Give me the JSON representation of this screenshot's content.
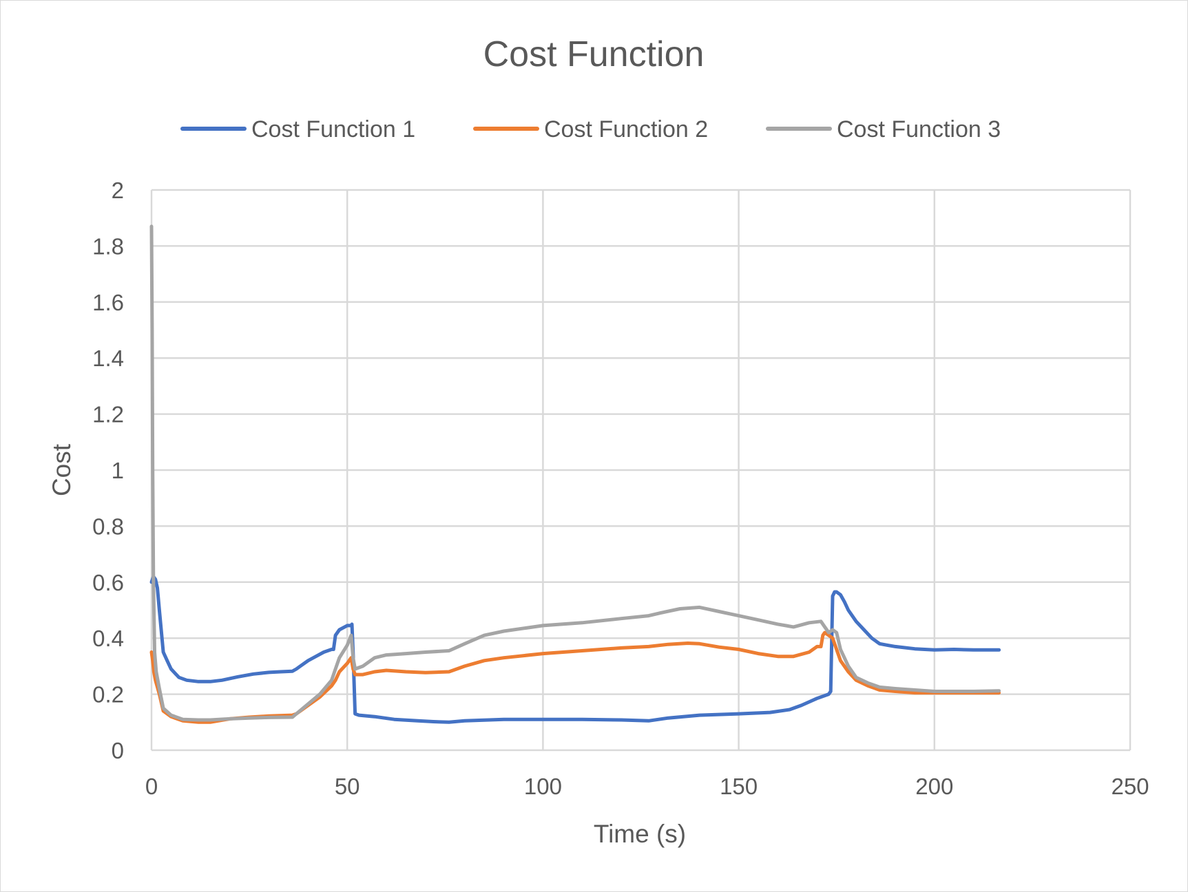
{
  "chart_data": {
    "type": "line",
    "title": "Cost Function",
    "xlabel": "Time (s)",
    "ylabel": "Cost",
    "xlim": [
      0,
      250
    ],
    "ylim": [
      0,
      2
    ],
    "xticks": [
      "0",
      "50",
      "100",
      "150",
      "200",
      "250"
    ],
    "yticks": [
      "0",
      "0.2",
      "0.4",
      "0.6",
      "0.8",
      "1",
      "1.2",
      "1.4",
      "1.6",
      "1.8",
      "2"
    ],
    "grid": true,
    "legend": "top",
    "series": [
      {
        "name": "Cost Function 1",
        "color": "#4472C4",
        "x": [
          0,
          0.5,
          1,
          1.5,
          2,
          3,
          4,
          5,
          7,
          9,
          12,
          15,
          18,
          22,
          26,
          30,
          33,
          36,
          37,
          38,
          40,
          42,
          44,
          46,
          46.5,
          47,
          48,
          50,
          51,
          51.2,
          51.5,
          52,
          53,
          57,
          62,
          68,
          72,
          76,
          80,
          90,
          100,
          110,
          120,
          127,
          132,
          140,
          150,
          158,
          163,
          166,
          170,
          173,
          173.5,
          174,
          174.5,
          175,
          176,
          177,
          178,
          180,
          182,
          184,
          186,
          188,
          190,
          195,
          200,
          205,
          210,
          216.5
        ],
        "y": [
          0.6,
          0.62,
          0.61,
          0.58,
          0.5,
          0.35,
          0.32,
          0.29,
          0.26,
          0.25,
          0.245,
          0.245,
          0.25,
          0.262,
          0.272,
          0.278,
          0.28,
          0.282,
          0.29,
          0.3,
          0.32,
          0.335,
          0.35,
          0.36,
          0.36,
          0.41,
          0.43,
          0.445,
          0.445,
          0.45,
          0.35,
          0.13,
          0.125,
          0.12,
          0.11,
          0.105,
          0.102,
          0.1,
          0.105,
          0.11,
          0.11,
          0.11,
          0.108,
          0.105,
          0.115,
          0.125,
          0.13,
          0.135,
          0.145,
          0.16,
          0.185,
          0.2,
          0.21,
          0.55,
          0.565,
          0.565,
          0.555,
          0.53,
          0.5,
          0.46,
          0.43,
          0.4,
          0.38,
          0.375,
          0.37,
          0.362,
          0.358,
          0.36,
          0.358,
          0.358
        ]
      },
      {
        "name": "Cost Function 2",
        "color": "#ED7D31",
        "x": [
          0,
          0.3,
          0.6,
          1,
          2,
          3,
          5,
          8,
          12,
          15,
          20,
          25,
          30,
          36,
          37,
          40,
          43,
          46,
          47,
          48,
          50,
          51,
          51.5,
          52,
          54,
          57,
          60,
          65,
          70,
          76,
          80,
          85,
          90,
          100,
          110,
          120,
          127,
          132,
          137,
          140,
          145,
          150,
          155,
          160,
          164,
          168,
          170,
          171,
          171.5,
          172,
          173,
          174,
          175,
          176,
          178,
          180,
          183,
          186,
          190,
          195,
          200,
          210,
          216.5
        ],
        "y": [
          0.35,
          0.32,
          0.28,
          0.25,
          0.2,
          0.14,
          0.12,
          0.105,
          0.1,
          0.1,
          0.112,
          0.118,
          0.122,
          0.125,
          0.13,
          0.16,
          0.19,
          0.23,
          0.25,
          0.28,
          0.31,
          0.33,
          0.29,
          0.27,
          0.27,
          0.28,
          0.285,
          0.28,
          0.277,
          0.28,
          0.3,
          0.32,
          0.33,
          0.345,
          0.355,
          0.365,
          0.37,
          0.378,
          0.382,
          0.38,
          0.368,
          0.36,
          0.345,
          0.335,
          0.335,
          0.35,
          0.37,
          0.37,
          0.41,
          0.42,
          0.41,
          0.4,
          0.36,
          0.32,
          0.28,
          0.25,
          0.23,
          0.215,
          0.21,
          0.205,
          0.205,
          0.205,
          0.205
        ]
      },
      {
        "name": "Cost Function 3",
        "color": "#A5A5A5",
        "x": [
          0,
          0.15,
          0.3,
          0.5,
          0.8,
          1.2,
          2,
          3,
          5,
          8,
          12,
          15,
          20,
          25,
          30,
          36,
          37,
          40,
          43,
          46,
          47,
          48,
          50,
          51,
          51.5,
          52,
          54,
          57,
          60,
          65,
          70,
          76,
          80,
          85,
          90,
          100,
          110,
          120,
          127,
          130,
          135,
          140,
          145,
          150,
          155,
          160,
          164,
          168,
          171,
          172,
          173,
          174,
          175,
          176,
          178,
          180,
          183,
          186,
          190,
          195,
          200,
          210,
          216.5
        ],
        "y": [
          1.87,
          1.5,
          1.0,
          0.6,
          0.35,
          0.28,
          0.22,
          0.15,
          0.125,
          0.11,
          0.108,
          0.108,
          0.112,
          0.115,
          0.117,
          0.118,
          0.13,
          0.165,
          0.2,
          0.25,
          0.29,
          0.33,
          0.375,
          0.41,
          0.33,
          0.29,
          0.3,
          0.33,
          0.34,
          0.345,
          0.35,
          0.355,
          0.38,
          0.41,
          0.425,
          0.445,
          0.455,
          0.47,
          0.48,
          0.49,
          0.505,
          0.51,
          0.495,
          0.48,
          0.465,
          0.45,
          0.44,
          0.455,
          0.46,
          0.44,
          0.42,
          0.43,
          0.42,
          0.36,
          0.3,
          0.26,
          0.24,
          0.225,
          0.22,
          0.215,
          0.21,
          0.21,
          0.212
        ]
      }
    ]
  }
}
